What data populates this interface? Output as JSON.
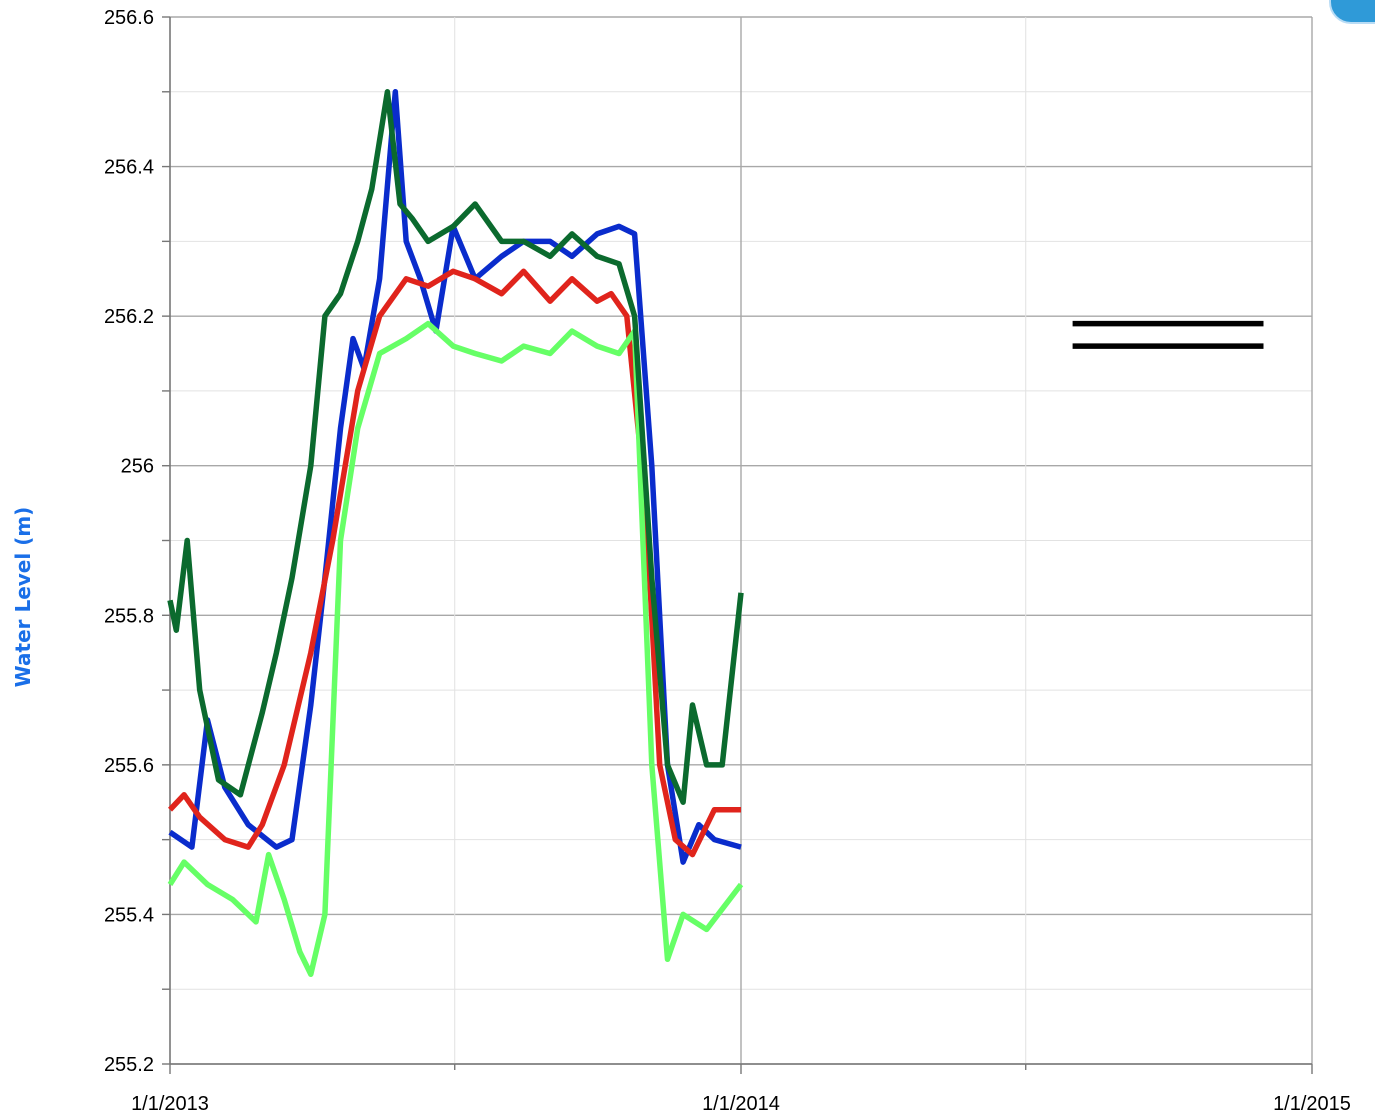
{
  "chart_data": {
    "type": "line",
    "ylabel": "Water Level (m)",
    "xlabel": "",
    "ylim": [
      255.2,
      256.6
    ],
    "yticks": [
      "255.2",
      "255.4",
      "255.6",
      "255.8",
      "256",
      "256.2",
      "256.4",
      "256.6"
    ],
    "xlim": [
      "1/1/2013",
      "1/1/2015"
    ],
    "xticks": [
      "1/1/2013",
      "1/1/2014",
      "1/1/2015"
    ],
    "grid": true,
    "series": [
      {
        "color": "#0a2ccc",
        "x": [
          "2013-01-01",
          "2013-01-15",
          "2013-01-25",
          "2013-02-05",
          "2013-02-20",
          "2013-03-10",
          "2013-03-20",
          "2013-04-01",
          "2013-04-10",
          "2013-04-20",
          "2013-04-28",
          "2013-05-05",
          "2013-05-15",
          "2013-05-25",
          "2013-06-01",
          "2013-06-10",
          "2013-06-20",
          "2013-07-01",
          "2013-07-15",
          "2013-08-01",
          "2013-08-15",
          "2013-09-01",
          "2013-09-15",
          "2013-10-01",
          "2013-10-15",
          "2013-10-25",
          "2013-11-05",
          "2013-11-15",
          "2013-11-25",
          "2013-12-05",
          "2013-12-15",
          "2014-01-01"
        ],
        "y": [
          255.51,
          255.49,
          255.66,
          255.57,
          255.52,
          255.49,
          255.5,
          255.68,
          255.85,
          256.05,
          256.17,
          256.13,
          256.25,
          256.5,
          256.3,
          256.25,
          256.18,
          256.32,
          256.25,
          256.28,
          256.3,
          256.3,
          256.28,
          256.31,
          256.32,
          256.31,
          256.0,
          255.6,
          255.47,
          255.52,
          255.5,
          255.49
        ]
      },
      {
        "color": "#e0241c",
        "x": [
          "2013-01-01",
          "2013-01-10",
          "2013-01-20",
          "2013-02-05",
          "2013-02-20",
          "2013-03-01",
          "2013-03-15",
          "2013-04-01",
          "2013-04-15",
          "2013-05-01",
          "2013-05-15",
          "2013-06-01",
          "2013-06-15",
          "2013-07-01",
          "2013-07-15",
          "2013-08-01",
          "2013-08-15",
          "2013-09-01",
          "2013-09-15",
          "2013-10-01",
          "2013-10-10",
          "2013-10-20",
          "2013-11-01",
          "2013-11-10",
          "2013-11-20",
          "2013-12-01",
          "2013-12-15",
          "2014-01-01"
        ],
        "y": [
          255.54,
          255.56,
          255.53,
          255.5,
          255.49,
          255.52,
          255.6,
          255.75,
          255.9,
          256.1,
          256.2,
          256.25,
          256.24,
          256.26,
          256.25,
          256.23,
          256.26,
          256.22,
          256.25,
          256.22,
          256.23,
          256.2,
          255.95,
          255.6,
          255.5,
          255.48,
          255.54,
          255.54
        ]
      },
      {
        "color": "#66ff66",
        "x": [
          "2013-01-01",
          "2013-01-10",
          "2013-01-25",
          "2013-02-10",
          "2013-02-25",
          "2013-03-05",
          "2013-03-15",
          "2013-03-25",
          "2013-04-01",
          "2013-04-10",
          "2013-04-20",
          "2013-05-01",
          "2013-05-15",
          "2013-06-01",
          "2013-06-15",
          "2013-07-01",
          "2013-07-15",
          "2013-08-01",
          "2013-08-15",
          "2013-09-01",
          "2013-09-15",
          "2013-10-01",
          "2013-10-15",
          "2013-10-25",
          "2013-11-05",
          "2013-11-15",
          "2013-11-25",
          "2013-12-10",
          "2014-01-01"
        ],
        "y": [
          255.44,
          255.47,
          255.44,
          255.42,
          255.39,
          255.48,
          255.42,
          255.35,
          255.32,
          255.4,
          255.9,
          256.05,
          256.15,
          256.17,
          256.19,
          256.16,
          256.15,
          256.14,
          256.16,
          256.15,
          256.18,
          256.16,
          256.15,
          256.18,
          255.6,
          255.34,
          255.4,
          255.38,
          255.44
        ]
      },
      {
        "color": "#0b6a2e",
        "x": [
          "2013-01-01",
          "2013-01-05",
          "2013-01-12",
          "2013-01-20",
          "2013-02-01",
          "2013-02-15",
          "2013-03-01",
          "2013-03-10",
          "2013-03-20",
          "2013-04-01",
          "2013-04-10",
          "2013-04-20",
          "2013-05-01",
          "2013-05-10",
          "2013-05-20",
          "2013-05-28",
          "2013-06-05",
          "2013-06-15",
          "2013-07-01",
          "2013-07-15",
          "2013-08-01",
          "2013-08-15",
          "2013-09-01",
          "2013-09-15",
          "2013-10-01",
          "2013-10-15",
          "2013-10-25",
          "2013-11-05",
          "2013-11-15",
          "2013-11-25",
          "2013-12-01",
          "2013-12-10",
          "2013-12-20",
          "2014-01-01"
        ],
        "y": [
          255.82,
          255.78,
          255.9,
          255.7,
          255.58,
          255.56,
          255.67,
          255.75,
          255.85,
          256.0,
          256.2,
          256.23,
          256.3,
          256.37,
          256.5,
          256.35,
          256.33,
          256.3,
          256.32,
          256.35,
          256.3,
          256.3,
          256.28,
          256.31,
          256.28,
          256.27,
          256.2,
          255.85,
          255.6,
          255.55,
          255.68,
          255.6,
          255.6,
          255.83
        ]
      },
      {
        "color": "#000000",
        "x": [
          "2014-08-01",
          "2014-12-01"
        ],
        "y": [
          256.19,
          256.19
        ]
      },
      {
        "color": "#000000",
        "x": [
          "2014-08-01",
          "2014-12-01"
        ],
        "y": [
          256.16,
          256.16
        ]
      }
    ]
  }
}
